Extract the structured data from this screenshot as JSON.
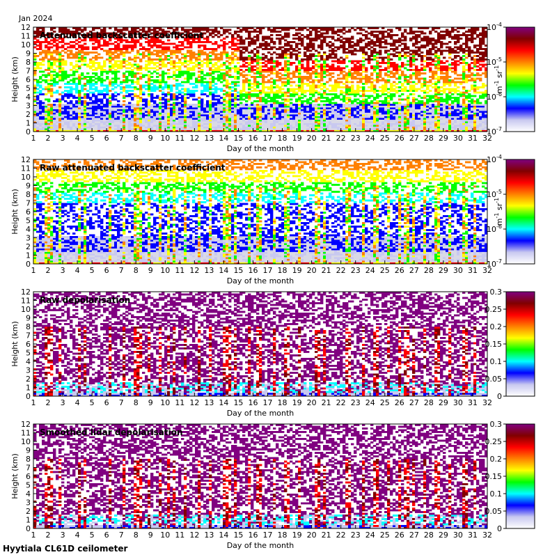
{
  "header_label": "Jan 2024",
  "footer_label": "Hyytiala CL61D ceilometer",
  "colors": {
    "background_grey": "#d9d9e6",
    "cmap": [
      "#ffffff",
      "#c8c8f0",
      "#0000ff",
      "#00ffff",
      "#00ff00",
      "#ffff00",
      "#ff8000",
      "#ff0000",
      "#800000",
      "#800080"
    ]
  },
  "chart_data": [
    {
      "type": "heatmap",
      "title": "Attenuated backscatter coefficient",
      "xlabel": "Day of the month",
      "ylabel": "Height (km)",
      "xlim": [
        1,
        32
      ],
      "ylim": [
        0,
        12
      ],
      "xticks": [
        "1",
        "2",
        "3",
        "4",
        "5",
        "6",
        "7",
        "8",
        "9",
        "10",
        "11",
        "12",
        "13",
        "14",
        "15",
        "16",
        "17",
        "18",
        "19",
        "20",
        "21",
        "22",
        "23",
        "24",
        "25",
        "26",
        "27",
        "28",
        "29",
        "30",
        "31",
        "32"
      ],
      "yticks": [
        "0",
        "1",
        "2",
        "3",
        "4",
        "5",
        "6",
        "7",
        "8",
        "9",
        "10",
        "11",
        "12"
      ],
      "colorbar": {
        "scale": "log",
        "range": [
          1e-07,
          0.0001
        ],
        "ticks": [
          {
            "base": "10",
            "exp": "-7"
          },
          {
            "base": "10",
            "exp": "-6"
          },
          {
            "base": "10",
            "exp": "-5"
          },
          {
            "base": "10",
            "exp": "-4"
          }
        ],
        "unit": {
          "m": "m",
          "m_exp": "-1",
          "sr": "sr",
          "sr_exp": "-1"
        }
      }
    },
    {
      "type": "heatmap",
      "title": "Raw attenuated backscatter coefficient",
      "xlabel": "Day of the month",
      "ylabel": "Height (km)",
      "xlim": [
        1,
        32
      ],
      "ylim": [
        0,
        12
      ],
      "xticks": [
        "1",
        "2",
        "3",
        "4",
        "5",
        "6",
        "7",
        "8",
        "9",
        "10",
        "11",
        "12",
        "13",
        "14",
        "15",
        "16",
        "17",
        "18",
        "19",
        "20",
        "21",
        "22",
        "23",
        "24",
        "25",
        "26",
        "27",
        "28",
        "29",
        "30",
        "31",
        "32"
      ],
      "yticks": [
        "0",
        "1",
        "2",
        "3",
        "4",
        "5",
        "6",
        "7",
        "8",
        "9",
        "10",
        "11",
        "12"
      ],
      "colorbar": {
        "scale": "log",
        "range": [
          1e-07,
          0.0001
        ],
        "ticks": [
          {
            "base": "10",
            "exp": "-7"
          },
          {
            "base": "10",
            "exp": "-6"
          },
          {
            "base": "10",
            "exp": "-5"
          },
          {
            "base": "10",
            "exp": "-4"
          }
        ],
        "unit": {
          "m": "m",
          "m_exp": "-1",
          "sr": "sr",
          "sr_exp": "-1"
        }
      }
    },
    {
      "type": "heatmap",
      "title": "Raw depolarisation",
      "xlabel": "Day of the month",
      "ylabel": "Height (km)",
      "xlim": [
        1,
        32
      ],
      "ylim": [
        0,
        12
      ],
      "xticks": [
        "1",
        "2",
        "3",
        "4",
        "5",
        "6",
        "7",
        "8",
        "9",
        "10",
        "11",
        "12",
        "13",
        "14",
        "15",
        "16",
        "17",
        "18",
        "19",
        "20",
        "21",
        "22",
        "23",
        "24",
        "25",
        "26",
        "27",
        "28",
        "29",
        "30",
        "31",
        "32"
      ],
      "yticks": [
        "0",
        "1",
        "2",
        "3",
        "4",
        "5",
        "6",
        "7",
        "8",
        "9",
        "10",
        "11",
        "12"
      ],
      "colorbar": {
        "scale": "linear",
        "range": [
          0,
          0.3
        ],
        "ticks": [
          "0",
          "0.05",
          "0.1",
          "0.15",
          "0.2",
          "0.25",
          "0.3"
        ]
      }
    },
    {
      "type": "heatmap",
      "title": "Smoothed lidar depolarisation",
      "xlabel": "Day of the month",
      "ylabel": "Height (km)",
      "xlim": [
        1,
        32
      ],
      "ylim": [
        0,
        12
      ],
      "xticks": [
        "1",
        "2",
        "3",
        "4",
        "5",
        "6",
        "7",
        "8",
        "9",
        "10",
        "11",
        "12",
        "13",
        "14",
        "15",
        "16",
        "17",
        "18",
        "19",
        "20",
        "21",
        "22",
        "23",
        "24",
        "25",
        "26",
        "27",
        "28",
        "29",
        "30",
        "31",
        "32"
      ],
      "yticks": [
        "0",
        "1",
        "2",
        "3",
        "4",
        "5",
        "6",
        "7",
        "8",
        "9",
        "10",
        "11",
        "12"
      ],
      "colorbar": {
        "scale": "linear",
        "range": [
          0,
          0.3
        ],
        "ticks": [
          "0",
          "0.05",
          "0.1",
          "0.15",
          "0.2",
          "0.25",
          "0.3"
        ]
      }
    }
  ]
}
